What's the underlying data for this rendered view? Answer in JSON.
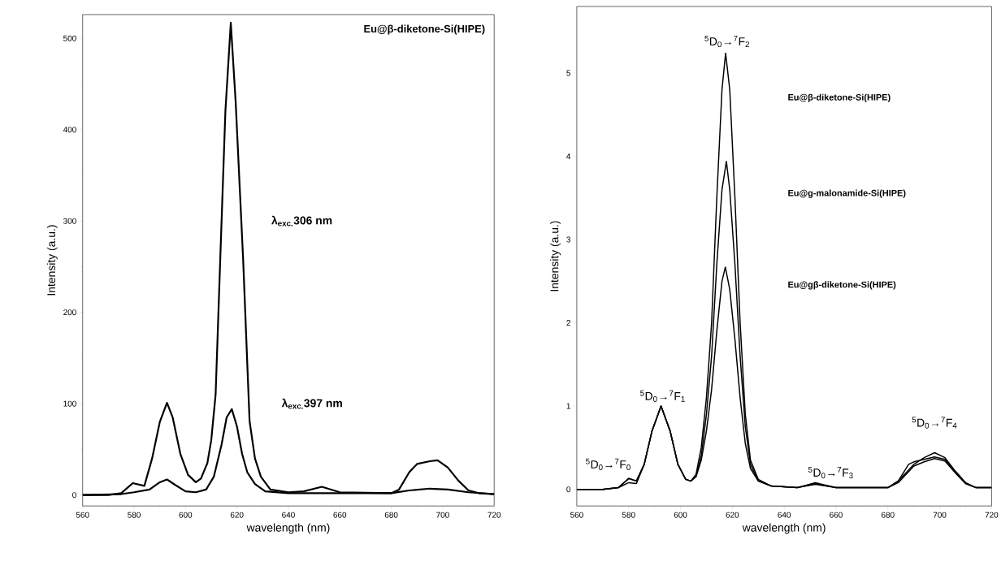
{
  "chart_data": [
    {
      "type": "line",
      "title": "Eu@β-diketone-Si(HIPE)",
      "xlabel": "wavelength (nm)",
      "ylabel": "Intensity (a.u.)",
      "xlim": [
        560,
        720
      ],
      "ylim": [
        -12,
        526
      ],
      "xticks": [
        560,
        580,
        600,
        620,
        640,
        660,
        680,
        700,
        720
      ],
      "yticks": [
        0,
        100,
        200,
        300,
        400,
        500
      ],
      "annotations": [
        "λ$_{exc.}$306 nm",
        "λ$_{exc.}$397 nm"
      ],
      "series": [
        {
          "color": "#000000",
          "x": [
            560,
            570,
            575,
            579.5,
            584,
            587,
            590,
            592.8,
            595,
            598,
            601,
            604,
            606,
            608.5,
            610,
            611.7,
            613.5,
            615.5,
            617.6,
            619.5,
            622.4,
            624.9,
            627,
            629.3,
            633,
            640,
            646,
            653,
            660,
            680,
            683,
            687,
            690,
            695,
            698,
            702,
            706,
            710,
            714,
            720
          ],
          "values": [
            0,
            0,
            2,
            13,
            10,
            40,
            80,
            101,
            85,
            45,
            22,
            14,
            18,
            35,
            60,
            110,
            258,
            420,
            517,
            430,
            258,
            81,
            40,
            20,
            6,
            3,
            4,
            9,
            3,
            2,
            6,
            25,
            34,
            37,
            38,
            30,
            16,
            5,
            2,
            1
          ]
        },
        {
          "color": "#000000",
          "x": [
            560,
            575,
            580,
            586,
            590,
            592.8,
            596,
            600,
            604,
            608,
            611,
            614,
            616,
            618,
            620,
            622,
            624,
            627,
            631,
            640,
            660,
            680,
            687,
            695,
            702,
            710,
            720
          ],
          "values": [
            0,
            1,
            3,
            6,
            14,
            17,
            11,
            4,
            3,
            6,
            20,
            55,
            85,
            94,
            75,
            45,
            25,
            12,
            4,
            2,
            2,
            2,
            5,
            7,
            6,
            3,
            1
          ]
        }
      ]
    },
    {
      "type": "line",
      "xlabel": "wavelength (nm)",
      "ylabel": "Intensity (a.u.)",
      "xlim": [
        560,
        720
      ],
      "ylim": [
        -0.2,
        5.8
      ],
      "xticks": [
        560,
        580,
        600,
        620,
        640,
        660,
        680,
        700,
        720
      ],
      "yticks": [
        0,
        1,
        2,
        3,
        4,
        5
      ],
      "annotations": [
        "$^{5}$D$_{0}$→$^{7}$F$_{0}$",
        "$^{5}$D$_{0}$→$^{7}$F$_{1}$",
        "$^{5}$D$_{0}$→$^{7}$F$_{2}$",
        "$^{5}$D$_{0}$→$^{7}$F$_{3}$",
        "$^{5}$D$_{0}$→$^{7}$F$_{4}$",
        "Eu@β-diketone-Si(HIPE)",
        "Eu@g-malonamide-Si(HIPE)",
        "Eu@gβ-diketone-Si(HIPE)"
      ],
      "series": [
        {
          "color": "#000000",
          "x": [
            560,
            570,
            576,
            580,
            583,
            586,
            589,
            592.5,
            596,
            599,
            602,
            604,
            606,
            608,
            610,
            612,
            614,
            616,
            617.4,
            619,
            621,
            623,
            625,
            627,
            630,
            635,
            645,
            652,
            660,
            680,
            684,
            690,
            694,
            698,
            702,
            706,
            710,
            714,
            720
          ],
          "values": [
            0,
            0,
            0.02,
            0.13,
            0.1,
            0.3,
            0.7,
            1.0,
            0.7,
            0.3,
            0.12,
            0.1,
            0.18,
            0.5,
            1.1,
            2.0,
            3.5,
            4.8,
            5.24,
            4.8,
            3.5,
            2.0,
            0.9,
            0.35,
            0.12,
            0.04,
            0.02,
            0.08,
            0.02,
            0.02,
            0.1,
            0.3,
            0.38,
            0.44,
            0.38,
            0.22,
            0.08,
            0.02,
            0.02
          ]
        },
        {
          "color": "#000000",
          "x": [
            560,
            570,
            576,
            580,
            583,
            586,
            589,
            592.5,
            596,
            599,
            602,
            604,
            606,
            608,
            610,
            612,
            614,
            616,
            617.7,
            619,
            621,
            623,
            625,
            627,
            630,
            635,
            645,
            652,
            660,
            680,
            684,
            688,
            690,
            694,
            698,
            702,
            706,
            710,
            714,
            720
          ],
          "values": [
            0,
            0,
            0.02,
            0.13,
            0.1,
            0.3,
            0.7,
            1.0,
            0.7,
            0.3,
            0.12,
            0.1,
            0.16,
            0.4,
            0.9,
            1.6,
            2.7,
            3.6,
            3.94,
            3.6,
            2.7,
            1.6,
            0.75,
            0.3,
            0.1,
            0.04,
            0.02,
            0.07,
            0.02,
            0.02,
            0.1,
            0.3,
            0.33,
            0.36,
            0.39,
            0.36,
            0.2,
            0.07,
            0.02,
            0.02
          ]
        },
        {
          "color": "#000000",
          "x": [
            560,
            570,
            576,
            580,
            583,
            586,
            589,
            592.5,
            596,
            599,
            602,
            604,
            606,
            608,
            610,
            612,
            614,
            616,
            617.3,
            619,
            621,
            623,
            625,
            627,
            630,
            635,
            645,
            652,
            660,
            680,
            684,
            690,
            694,
            698,
            702,
            706,
            710,
            714,
            720
          ],
          "values": [
            0,
            0,
            0.02,
            0.08,
            0.07,
            0.3,
            0.7,
            1.0,
            0.7,
            0.3,
            0.12,
            0.1,
            0.15,
            0.35,
            0.7,
            1.2,
            1.9,
            2.5,
            2.67,
            2.4,
            1.8,
            1.1,
            0.55,
            0.25,
            0.1,
            0.04,
            0.02,
            0.06,
            0.02,
            0.02,
            0.08,
            0.28,
            0.33,
            0.37,
            0.34,
            0.2,
            0.07,
            0.02,
            0.02
          ]
        }
      ]
    }
  ]
}
